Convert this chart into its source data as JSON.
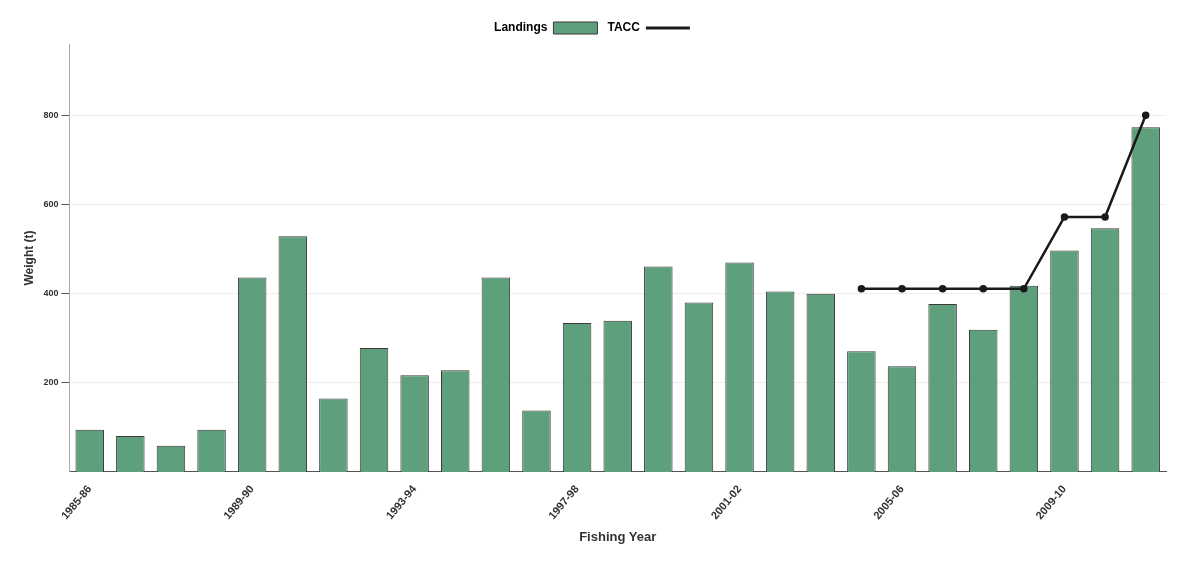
{
  "chart_data": {
    "type": "bar",
    "xlabel": "Fishing Year",
    "ylabel": "Weight (t)",
    "categories": [
      "1985-86",
      null,
      null,
      null,
      "1989-90",
      null,
      null,
      null,
      "1993-94",
      null,
      null,
      null,
      "1997-98",
      null,
      null,
      null,
      "2001-02",
      null,
      null,
      null,
      "2005-06",
      null,
      null,
      null,
      "2009-10",
      null,
      null
    ],
    "series": [
      {
        "name": "Landings",
        "color": "#5fa07c",
        "values": [
          95,
          81,
          59,
          95,
          436,
          529,
          165,
          278,
          217,
          228,
          436,
          138,
          334,
          339,
          461,
          380,
          470,
          405,
          400,
          271,
          237,
          377,
          319,
          418,
          497,
          547,
          773
        ]
      },
      {
        "name": "TACC",
        "type": "line",
        "color": "#1a1a1a",
        "values": [
          null,
          null,
          null,
          null,
          null,
          null,
          null,
          null,
          null,
          null,
          null,
          null,
          null,
          null,
          null,
          null,
          null,
          null,
          null,
          411,
          411,
          411,
          411,
          411,
          572,
          572,
          800
        ]
      }
    ],
    "ylim": [
      0,
      960
    ],
    "yticks": [
      200,
      400,
      600,
      800
    ],
    "grid": "y",
    "legend": "top",
    "marker": "circle",
    "line_style": "solid"
  }
}
